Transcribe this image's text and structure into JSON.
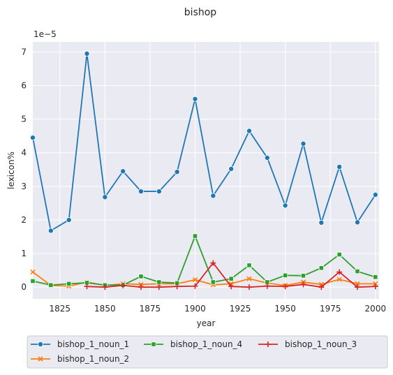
{
  "chart_data": {
    "type": "line",
    "title": "bishop",
    "xlabel": "year",
    "ylabel": "lexicon%",
    "y_offset_label": "1e−5",
    "xlim": [
      1810,
      2002
    ],
    "ylim": [
      -0.35,
      7.3
    ],
    "x_ticks": [
      1825,
      1850,
      1875,
      1900,
      1925,
      1950,
      1975,
      2000
    ],
    "y_ticks": [
      0,
      1,
      2,
      3,
      4,
      5,
      6,
      7
    ],
    "grid": true,
    "legend_position": "bottom",
    "x": [
      1810,
      1820,
      1830,
      1840,
      1850,
      1860,
      1870,
      1880,
      1890,
      1900,
      1910,
      1920,
      1930,
      1940,
      1950,
      1960,
      1970,
      1980,
      1990,
      2000
    ],
    "series": [
      {
        "name": "bishop_1_noun_1",
        "color": "#1f77b4",
        "marker": "circle",
        "values": [
          4.45,
          1.68,
          2.0,
          6.95,
          2.68,
          3.45,
          2.85,
          2.85,
          3.43,
          5.6,
          2.72,
          3.52,
          4.65,
          3.85,
          2.43,
          4.27,
          1.92,
          3.58,
          1.93,
          2.75
        ]
      },
      {
        "name": "bishop_1_noun_2",
        "color": "#ff7f0e",
        "marker": "x",
        "values": [
          0.45,
          0.05,
          0.03,
          0.15,
          0.05,
          0.1,
          0.08,
          0.1,
          0.1,
          0.22,
          0.07,
          0.1,
          0.25,
          0.12,
          0.05,
          0.15,
          0.08,
          0.23,
          0.1,
          0.1
        ]
      },
      {
        "name": "bishop_1_noun_4",
        "color": "#2ca02c",
        "marker": "square",
        "values": [
          0.18,
          0.06,
          0.1,
          0.13,
          0.06,
          0.06,
          0.32,
          0.15,
          0.12,
          1.52,
          0.15,
          0.25,
          0.65,
          0.15,
          0.35,
          0.34,
          0.57,
          0.97,
          0.47,
          0.3
        ]
      },
      {
        "name": "bishop_1_noun_3",
        "color": "#d62728",
        "marker": "plus",
        "values": [
          null,
          null,
          null,
          0.02,
          0.0,
          0.05,
          0.0,
          0.0,
          0.02,
          0.03,
          0.72,
          0.02,
          0.0,
          0.03,
          0.02,
          0.08,
          0.0,
          0.45,
          0.0,
          0.02
        ]
      }
    ],
    "legend_order": [
      "bishop_1_noun_1",
      "bishop_1_noun_4",
      "bishop_1_noun_3",
      "bishop_1_noun_2"
    ]
  }
}
